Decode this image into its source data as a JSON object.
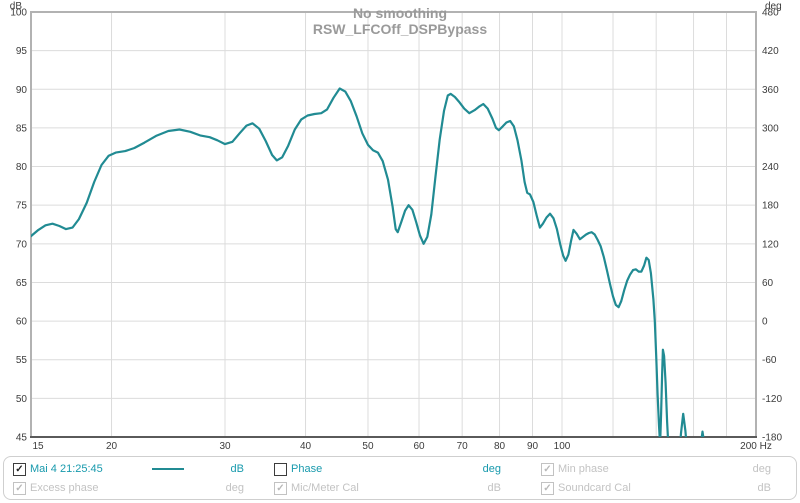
{
  "title": {
    "line1": "No smoothing",
    "line2": "RSW_LFCOff_DSPBypass"
  },
  "axes": {
    "left_unit": "dB",
    "right_unit": "deg",
    "bottom_unit_label": "200 Hz",
    "left_ticks": [
      100,
      95,
      90,
      85,
      80,
      75,
      70,
      65,
      60,
      55,
      50,
      45
    ],
    "right_ticks": [
      480,
      420,
      360,
      300,
      240,
      180,
      120,
      60,
      0,
      -60,
      -120,
      -180
    ],
    "bottom_ticks": [
      {
        "f": 15,
        "label": "15"
      },
      {
        "f": 20,
        "label": "20"
      },
      {
        "f": 30,
        "label": "30"
      },
      {
        "f": 40,
        "label": "40"
      },
      {
        "f": 50,
        "label": "50"
      },
      {
        "f": 60,
        "label": "60"
      },
      {
        "f": 70,
        "label": "70"
      },
      {
        "f": 80,
        "label": "80"
      },
      {
        "f": 90,
        "label": "90"
      },
      {
        "f": 100,
        "label": "100"
      },
      {
        "f": 200,
        "label": "200 Hz"
      }
    ],
    "grid_freqs": [
      20,
      30,
      40,
      50,
      60,
      70,
      80,
      90,
      100,
      120,
      140,
      160,
      180
    ]
  },
  "colors": {
    "trace": "#218b93",
    "active_text": "#189aad",
    "disabled_text": "#c3c3c3",
    "title_text": "#9a9a9a",
    "gridline": "#dcdcdc"
  },
  "chart_data": {
    "type": "line",
    "title": "No smoothing",
    "subtitle": "RSW_LFCOff_DSPBypass",
    "xlabel": "Hz",
    "ylabel": "dB",
    "y2label": "deg",
    "xscale": "log",
    "xlim": [
      15,
      200
    ],
    "ylim": [
      45,
      100
    ],
    "y2lim": [
      -180,
      480
    ],
    "grid": true,
    "legend_position": "bottom",
    "series": [
      {
        "name": "Mai 4 21:25:45",
        "unit": "dB",
        "color": "#218b93",
        "points": [
          [
            15,
            71.0
          ],
          [
            15.4,
            71.8
          ],
          [
            15.8,
            72.4
          ],
          [
            16.2,
            72.6
          ],
          [
            16.6,
            72.3
          ],
          [
            17.0,
            71.9
          ],
          [
            17.4,
            72.1
          ],
          [
            17.8,
            73.2
          ],
          [
            18.3,
            75.3
          ],
          [
            18.8,
            78.0
          ],
          [
            19.3,
            80.2
          ],
          [
            19.8,
            81.4
          ],
          [
            20.3,
            81.8
          ],
          [
            21.0,
            82.0
          ],
          [
            21.7,
            82.4
          ],
          [
            22.5,
            83.1
          ],
          [
            23.5,
            84.0
          ],
          [
            24.5,
            84.6
          ],
          [
            25.5,
            84.8
          ],
          [
            26.5,
            84.5
          ],
          [
            27.5,
            84.0
          ],
          [
            28.4,
            83.8
          ],
          [
            29.2,
            83.4
          ],
          [
            30.0,
            82.9
          ],
          [
            30.8,
            83.2
          ],
          [
            31.6,
            84.3
          ],
          [
            32.4,
            85.3
          ],
          [
            33.1,
            85.6
          ],
          [
            33.9,
            84.9
          ],
          [
            34.7,
            83.3
          ],
          [
            35.5,
            81.5
          ],
          [
            36.1,
            80.8
          ],
          [
            36.8,
            81.2
          ],
          [
            37.6,
            82.7
          ],
          [
            38.5,
            84.8
          ],
          [
            39.4,
            86.1
          ],
          [
            40.3,
            86.6
          ],
          [
            41.3,
            86.8
          ],
          [
            42.3,
            86.9
          ],
          [
            43.2,
            87.4
          ],
          [
            44.2,
            88.9
          ],
          [
            45.2,
            90.1
          ],
          [
            46.1,
            89.7
          ],
          [
            47.0,
            88.5
          ],
          [
            48.0,
            86.5
          ],
          [
            49.0,
            84.3
          ],
          [
            50.0,
            82.8
          ],
          [
            50.9,
            82.1
          ],
          [
            51.8,
            81.8
          ],
          [
            52.7,
            80.7
          ],
          [
            53.7,
            78.3
          ],
          [
            54.6,
            74.8
          ],
          [
            55.2,
            71.9
          ],
          [
            55.6,
            71.5
          ],
          [
            56.3,
            72.8
          ],
          [
            57.1,
            74.3
          ],
          [
            57.8,
            75.0
          ],
          [
            58.6,
            74.4
          ],
          [
            59.4,
            72.8
          ],
          [
            60.2,
            71.1
          ],
          [
            61.0,
            70.0
          ],
          [
            61.8,
            70.9
          ],
          [
            62.7,
            73.8
          ],
          [
            63.6,
            78.5
          ],
          [
            64.6,
            83.5
          ],
          [
            65.6,
            87.2
          ],
          [
            66.5,
            89.2
          ],
          [
            67.2,
            89.4
          ],
          [
            68.2,
            89.0
          ],
          [
            69.2,
            88.4
          ],
          [
            70.5,
            87.5
          ],
          [
            71.8,
            86.9
          ],
          [
            73.2,
            87.3
          ],
          [
            74.5,
            87.8
          ],
          [
            75.5,
            88.1
          ],
          [
            76.7,
            87.5
          ],
          [
            78.0,
            86.2
          ],
          [
            79.0,
            85.0
          ],
          [
            79.8,
            84.7
          ],
          [
            80.9,
            85.2
          ],
          [
            82.0,
            85.7
          ],
          [
            83.1,
            85.9
          ],
          [
            84.2,
            85.2
          ],
          [
            85.3,
            83.4
          ],
          [
            86.5,
            80.8
          ],
          [
            87.5,
            78.0
          ],
          [
            88.3,
            76.6
          ],
          [
            89.2,
            76.4
          ],
          [
            90.3,
            75.4
          ],
          [
            91.4,
            73.6
          ],
          [
            92.4,
            72.1
          ],
          [
            93.4,
            72.6
          ],
          [
            94.6,
            73.4
          ],
          [
            95.8,
            73.9
          ],
          [
            97.0,
            73.3
          ],
          [
            98.2,
            71.9
          ],
          [
            99.4,
            69.9
          ],
          [
            100.4,
            68.5
          ],
          [
            101.3,
            67.8
          ],
          [
            102.3,
            68.6
          ],
          [
            103.3,
            70.4
          ],
          [
            104.2,
            71.8
          ],
          [
            105.4,
            71.3
          ],
          [
            106.6,
            70.6
          ],
          [
            107.8,
            70.9
          ],
          [
            109.0,
            71.2
          ],
          [
            110.1,
            71.4
          ],
          [
            111.2,
            71.5
          ],
          [
            112.4,
            71.2
          ],
          [
            113.6,
            70.5
          ],
          [
            114.8,
            69.7
          ],
          [
            116.1,
            68.3
          ],
          [
            117.4,
            66.6
          ],
          [
            118.7,
            64.8
          ],
          [
            120.0,
            63.2
          ],
          [
            121.2,
            62.1
          ],
          [
            122.4,
            61.8
          ],
          [
            123.6,
            62.6
          ],
          [
            124.9,
            64.0
          ],
          [
            126.2,
            65.2
          ],
          [
            127.5,
            66.0
          ],
          [
            128.9,
            66.6
          ],
          [
            130.2,
            66.7
          ],
          [
            131.5,
            66.4
          ],
          [
            132.8,
            66.4
          ],
          [
            134.1,
            67.2
          ],
          [
            135.2,
            68.2
          ],
          [
            136.3,
            67.9
          ],
          [
            137.4,
            66.2
          ],
          [
            138.6,
            62.8
          ],
          [
            139.3,
            60.0
          ],
          [
            140.0,
            55.5
          ],
          [
            140.7,
            50.5
          ],
          [
            141.4,
            46.5
          ],
          [
            142.0,
            44.0
          ],
          [
            142.5,
            48.0
          ],
          [
            143.0,
            53.0
          ],
          [
            143.4,
            56.3
          ],
          [
            144.0,
            55.5
          ],
          [
            144.8,
            52.0
          ],
          [
            145.6,
            47.0
          ],
          [
            146.4,
            43.0
          ],
          [
            148.0,
            40.0
          ],
          [
            150.8,
            40.0
          ],
          [
            152.0,
            42.5
          ],
          [
            153.0,
            45.5
          ],
          [
            154.2,
            48.0
          ],
          [
            155.4,
            45.8
          ],
          [
            156.6,
            42.5
          ],
          [
            157.6,
            40.0
          ],
          [
            160.0,
            39.0
          ],
          [
            163.0,
            41.0
          ],
          [
            164.2,
            44.0
          ],
          [
            165.2,
            45.7
          ],
          [
            166.3,
            44.0
          ],
          [
            167.3,
            41.0
          ],
          [
            169.0,
            38.0
          ],
          [
            200,
            38.0
          ]
        ]
      }
    ]
  },
  "legend": {
    "row1": {
      "measurement": "Mai 4 21:25:45",
      "measurement_check": "✓",
      "measurement_unit": "dB",
      "phase_label": "Phase",
      "phase_check": "",
      "phase_unit": "deg",
      "minphase_label": "Min phase",
      "minphase_check": "✓",
      "minphase_unit": "deg"
    },
    "row2": {
      "excess_label": "Excess phase",
      "excess_check": "✓",
      "excess_unit": "deg",
      "miccal_label": "Mic/Meter Cal",
      "miccal_check": "✓",
      "miccal_unit": "dB",
      "soundcard_label": "Soundcard Cal",
      "soundcard_check": "✓",
      "soundcard_unit": "dB"
    }
  }
}
